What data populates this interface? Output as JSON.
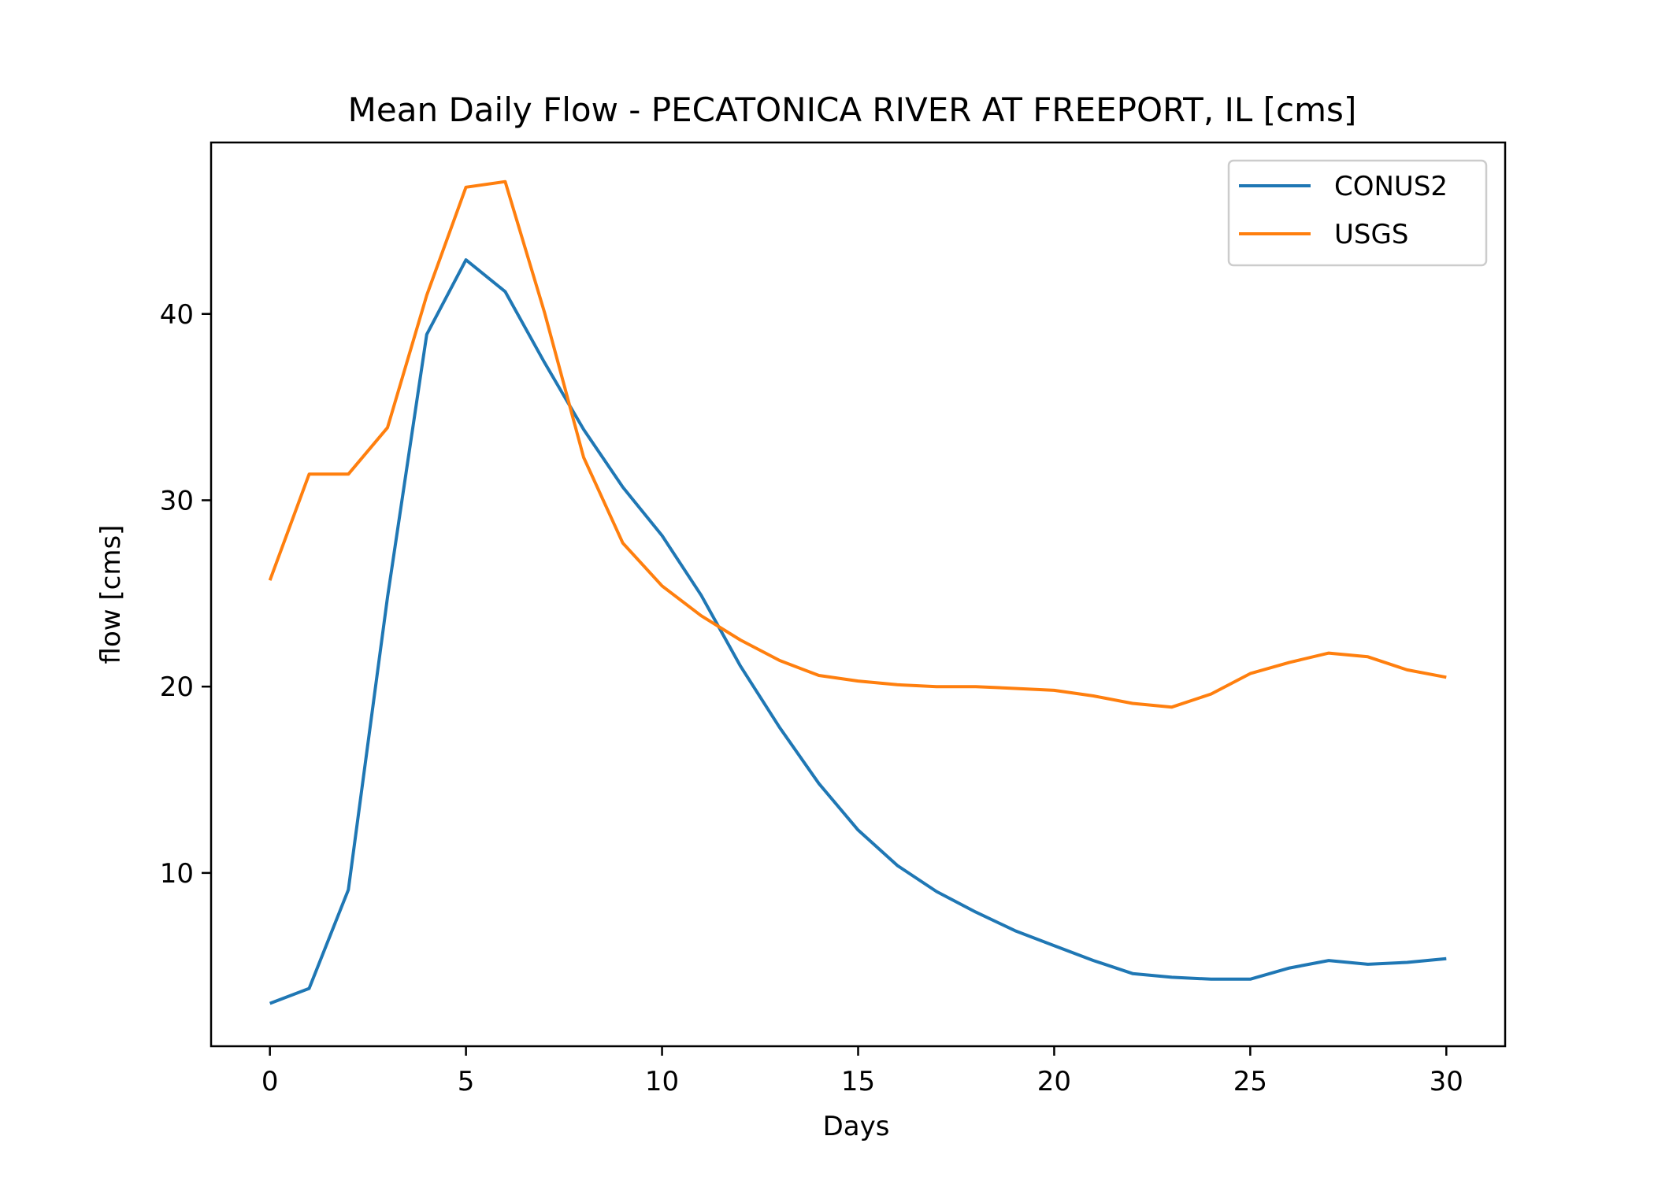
{
  "chart_data": {
    "type": "line",
    "title": "Mean Daily Flow - PECATONICA RIVER AT FREEPORT, IL [cms]",
    "xlabel": "Days",
    "ylabel": "flow [cms]",
    "xlim": [
      -1.5,
      31.5
    ],
    "ylim": [
      0.7,
      49.2
    ],
    "x_ticks": [
      0,
      5,
      10,
      15,
      20,
      25,
      30
    ],
    "y_ticks": [
      10,
      20,
      30,
      40
    ],
    "grid": false,
    "legend_position": "upper right",
    "x": [
      0,
      1,
      2,
      3,
      4,
      5,
      6,
      7,
      8,
      9,
      10,
      11,
      12,
      13,
      14,
      15,
      16,
      17,
      18,
      19,
      20,
      21,
      22,
      23,
      24,
      25,
      26,
      27,
      28,
      29,
      30
    ],
    "series": [
      {
        "name": "CONUS2",
        "color": "#1f77b4",
        "values": [
          3.0,
          3.8,
          9.1,
          24.8,
          38.9,
          42.9,
          41.2,
          37.4,
          33.8,
          30.7,
          28.1,
          24.9,
          21.1,
          17.8,
          14.8,
          12.3,
          10.4,
          9.0,
          7.9,
          6.9,
          6.1,
          5.3,
          4.6,
          4.4,
          4.3,
          4.3,
          4.9,
          5.3,
          5.1,
          5.2,
          5.4
        ]
      },
      {
        "name": "USGS",
        "color": "#ff7f0e",
        "values": [
          25.7,
          31.4,
          31.4,
          33.9,
          41.0,
          46.8,
          47.1,
          40.1,
          32.3,
          27.7,
          25.4,
          23.8,
          22.5,
          21.4,
          20.6,
          20.3,
          20.1,
          20.0,
          20.0,
          19.9,
          19.8,
          19.5,
          19.1,
          18.9,
          19.6,
          20.7,
          21.3,
          21.8,
          21.6,
          20.9,
          20.5
        ]
      }
    ]
  }
}
